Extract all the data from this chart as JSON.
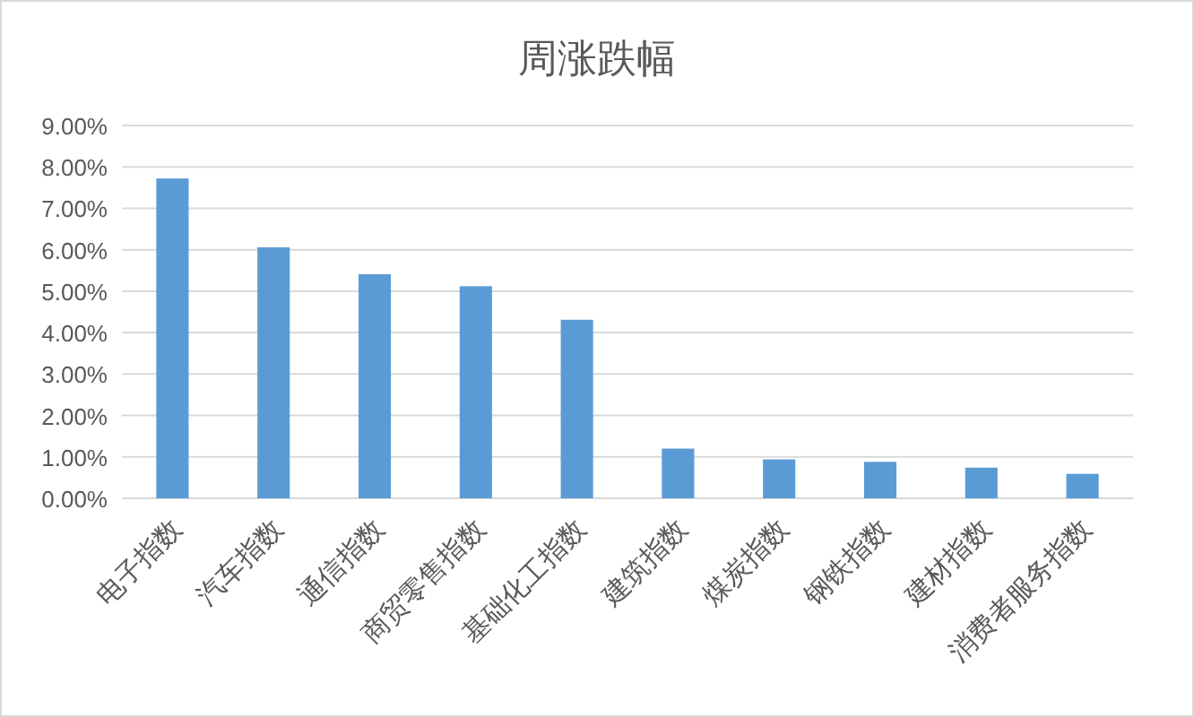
{
  "chart_data": {
    "type": "bar",
    "title": "周涨跌幅",
    "categories": [
      "电子指数",
      "汽车指数",
      "通信指数",
      "商贸零售指数",
      "基础化工指数",
      "建筑指数",
      "煤炭指数",
      "钢铁指数",
      "建材指数",
      "消费者服务指数"
    ],
    "values": [
      7.72,
      6.06,
      5.41,
      5.12,
      4.31,
      1.2,
      0.94,
      0.88,
      0.74,
      0.59
    ],
    "color": "#5b9bd5",
    "ylim": [
      0,
      9
    ],
    "yticks": [
      {
        "value": 0,
        "label": "0.00%"
      },
      {
        "value": 1,
        "label": "1.00%"
      },
      {
        "value": 2,
        "label": "2.00%"
      },
      {
        "value": 3,
        "label": "3.00%"
      },
      {
        "value": 4,
        "label": "4.00%"
      },
      {
        "value": 5,
        "label": "5.00%"
      },
      {
        "value": 6,
        "label": "6.00%"
      },
      {
        "value": 7,
        "label": "7.00%"
      },
      {
        "value": 8,
        "label": "8.00%"
      },
      {
        "value": 9,
        "label": "9.00%"
      }
    ],
    "grid": "y"
  }
}
